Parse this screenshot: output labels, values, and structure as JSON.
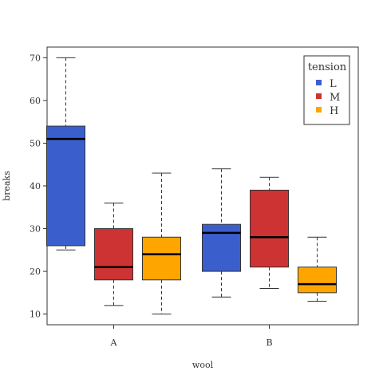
{
  "chart_data": {
    "type": "box",
    "xlabel": "wool",
    "ylabel": "breaks",
    "ylim": [
      7.5,
      72.5
    ],
    "yticks": [
      10,
      20,
      30,
      40,
      50,
      60,
      70
    ],
    "ytick_labels": [
      "10",
      "20",
      "30",
      "40",
      "50",
      "60",
      "70"
    ],
    "categories": [
      "A",
      "B"
    ],
    "legend": {
      "title": "tension",
      "position": "top-right",
      "entries": [
        {
          "label": "L",
          "color": "#3a5fcd"
        },
        {
          "label": "M",
          "color": "#cd3333"
        },
        {
          "label": "H",
          "color": "#ffa500"
        }
      ]
    },
    "series": [
      {
        "category": "A",
        "group": "L",
        "color": "#3a5fcd",
        "min": 25,
        "q1": 26,
        "median": 51,
        "q3": 54,
        "max": 70
      },
      {
        "category": "A",
        "group": "M",
        "color": "#cd3333",
        "min": 12,
        "q1": 18,
        "median": 21,
        "q3": 30,
        "max": 36
      },
      {
        "category": "A",
        "group": "H",
        "color": "#ffa500",
        "min": 10,
        "q1": 18,
        "median": 24,
        "q3": 28,
        "max": 43
      },
      {
        "category": "B",
        "group": "L",
        "color": "#3a5fcd",
        "min": 14,
        "q1": 20,
        "median": 29,
        "q3": 31,
        "max": 44
      },
      {
        "category": "B",
        "group": "M",
        "color": "#cd3333",
        "min": 16,
        "q1": 21,
        "median": 28,
        "q3": 39,
        "max": 42
      },
      {
        "category": "B",
        "group": "H",
        "color": "#ffa500",
        "min": 13,
        "q1": 15,
        "median": 17,
        "q3": 21,
        "max": 28
      }
    ]
  }
}
